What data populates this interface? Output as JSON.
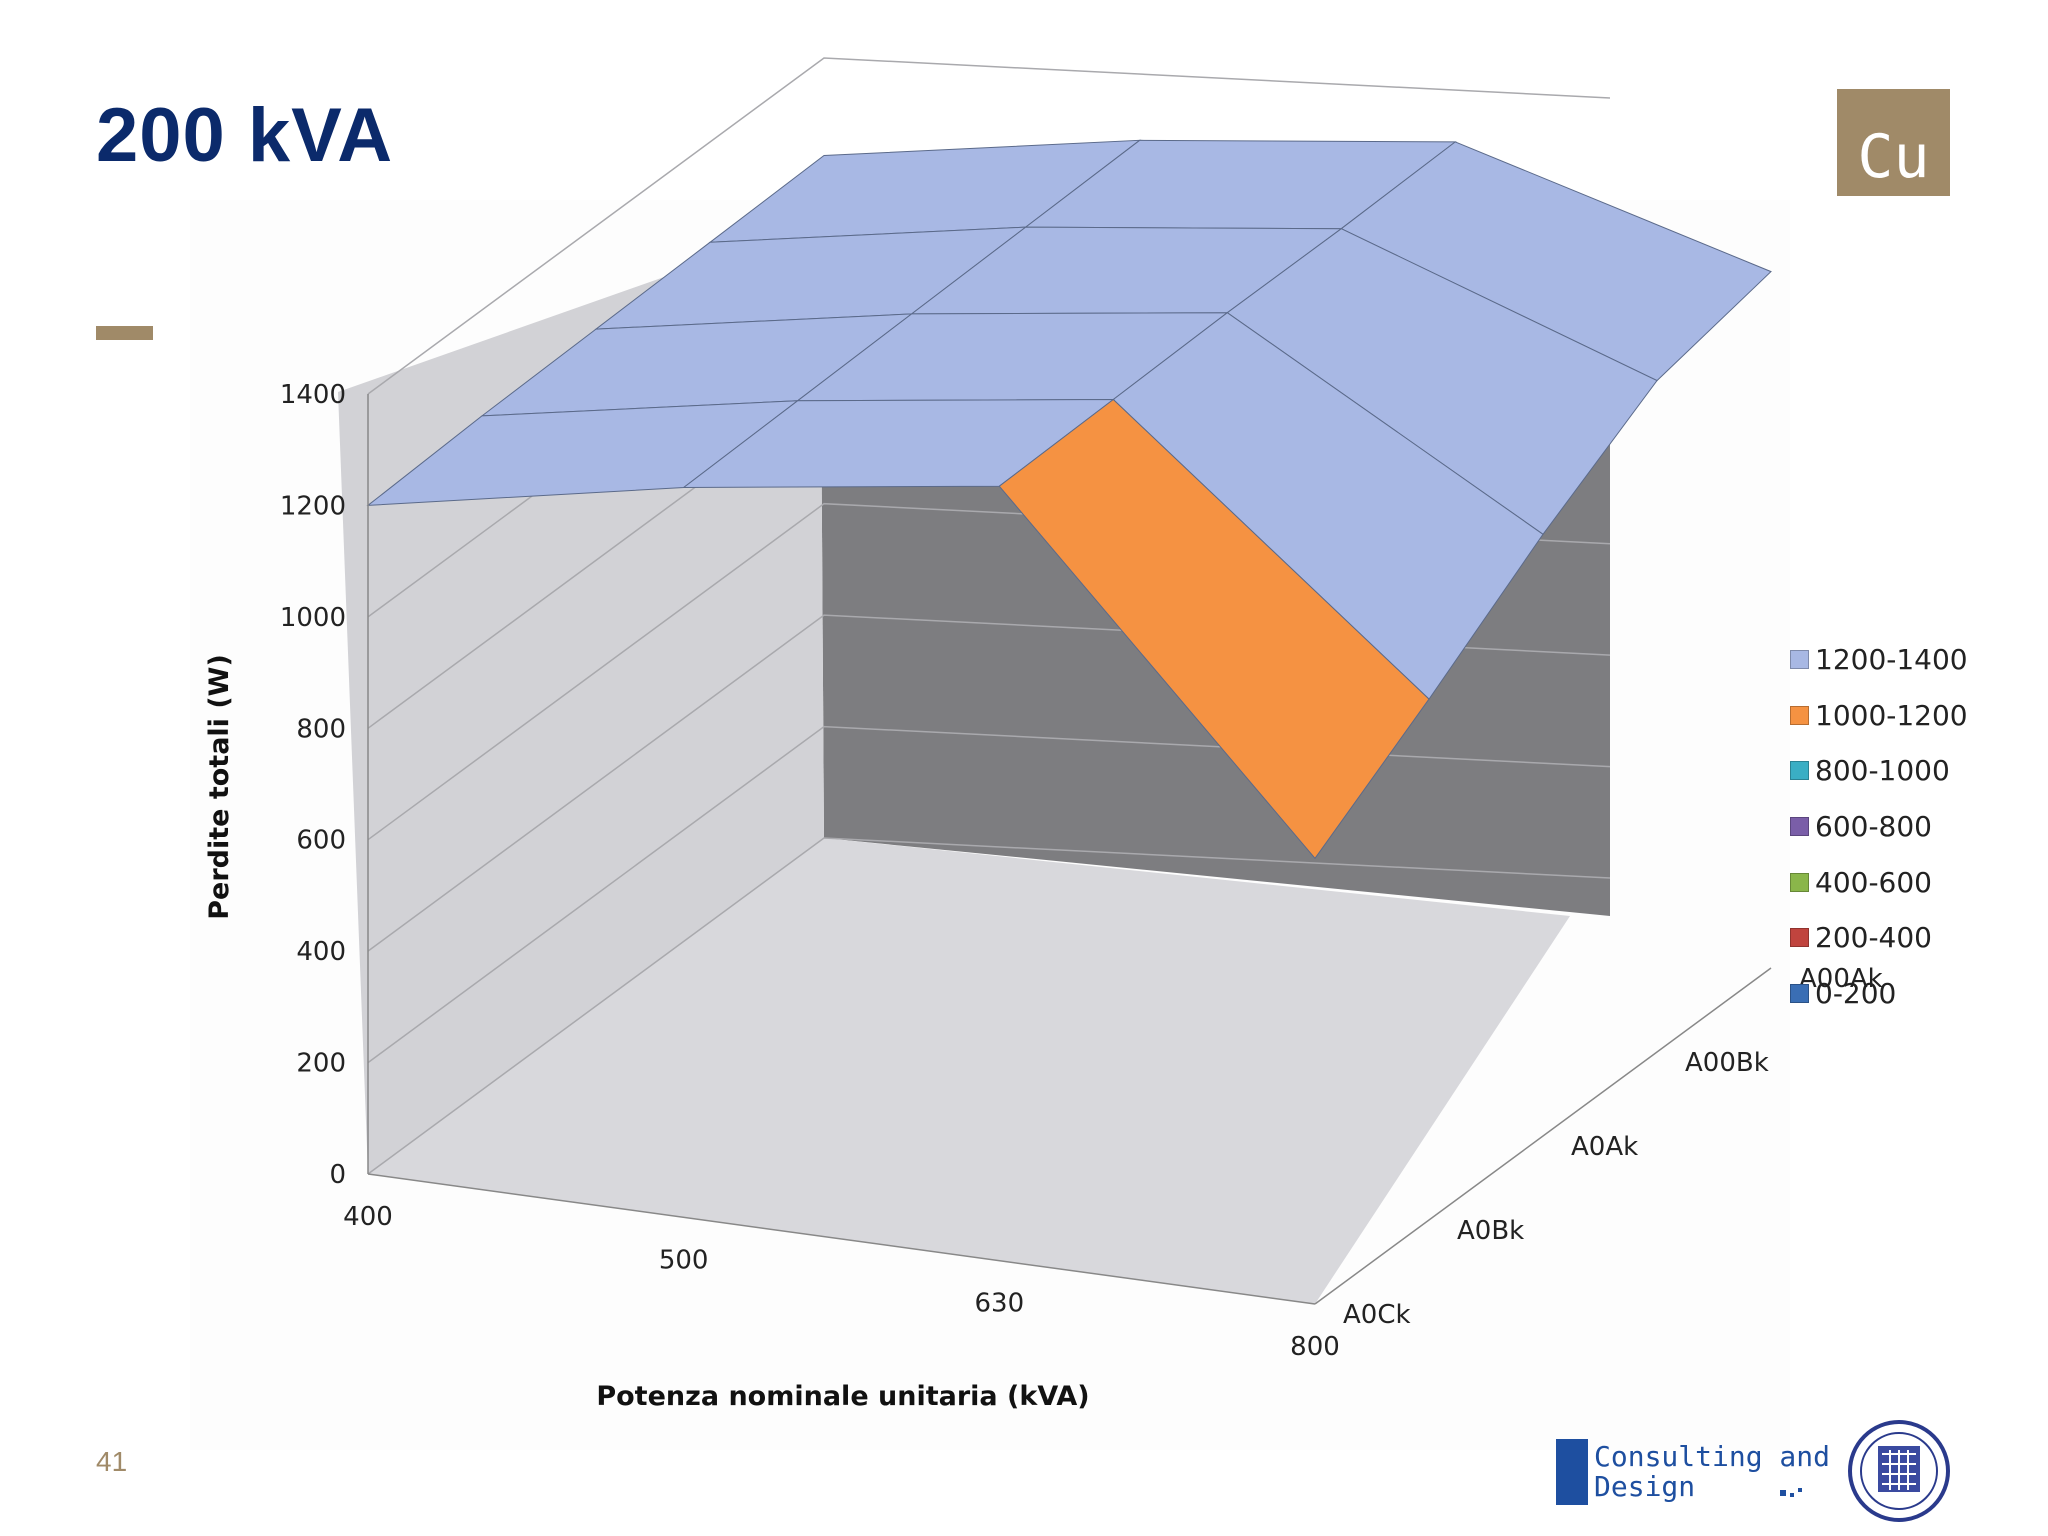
{
  "slide": {
    "title": "200 kVA",
    "badge": "Cu",
    "page_number": "41",
    "logo_text": "Consulting and\nDesign",
    "colors": {
      "title": "#0b2a6b",
      "accent": "#a08a68",
      "logo": "#1e4fa0"
    }
  },
  "chart_data": {
    "type": "surface",
    "title": "",
    "xlabel": "Potenza nominale  unitaria (kVA)",
    "ylabel": "Perdite totali (W)",
    "categories": [
      "400",
      "500",
      "630",
      "800"
    ],
    "series_axis": [
      "A0Ck",
      "A0Bk",
      "A0Ak",
      "A00Bk",
      "A00Ak"
    ],
    "zlim": [
      0,
      1400
    ],
    "z_ticks": [
      0,
      200,
      400,
      600,
      800,
      1000,
      1200,
      1400
    ],
    "grid": true,
    "legend_position": "right",
    "legend": [
      {
        "label": "1200-1400",
        "color": "#a8b8e4"
      },
      {
        "label": "1000-1200",
        "color": "#f59242"
      },
      {
        "label": "800-1000",
        "color": "#3aaec4"
      },
      {
        "label": "600-800",
        "color": "#7a5ea8"
      },
      {
        "label": "400-600",
        "color": "#8ab64a"
      },
      {
        "label": "200-400",
        "color": "#c0443e"
      },
      {
        "label": "0-200",
        "color": "#3a6eb4"
      }
    ],
    "series": [
      {
        "name": "A0Ck",
        "values": [
          1200,
          1310,
          1390,
          800
        ]
      },
      {
        "name": "A0Bk",
        "values": [
          1210,
          1315,
          1395,
          935
        ]
      },
      {
        "name": "A0Ak",
        "values": [
          1215,
          1320,
          1400,
          1080
        ]
      },
      {
        "name": "A00Bk",
        "values": [
          1220,
          1325,
          1400,
          1205
        ]
      },
      {
        "name": "A00Ak",
        "values": [
          1225,
          1330,
          1405,
          1250
        ]
      }
    ]
  }
}
